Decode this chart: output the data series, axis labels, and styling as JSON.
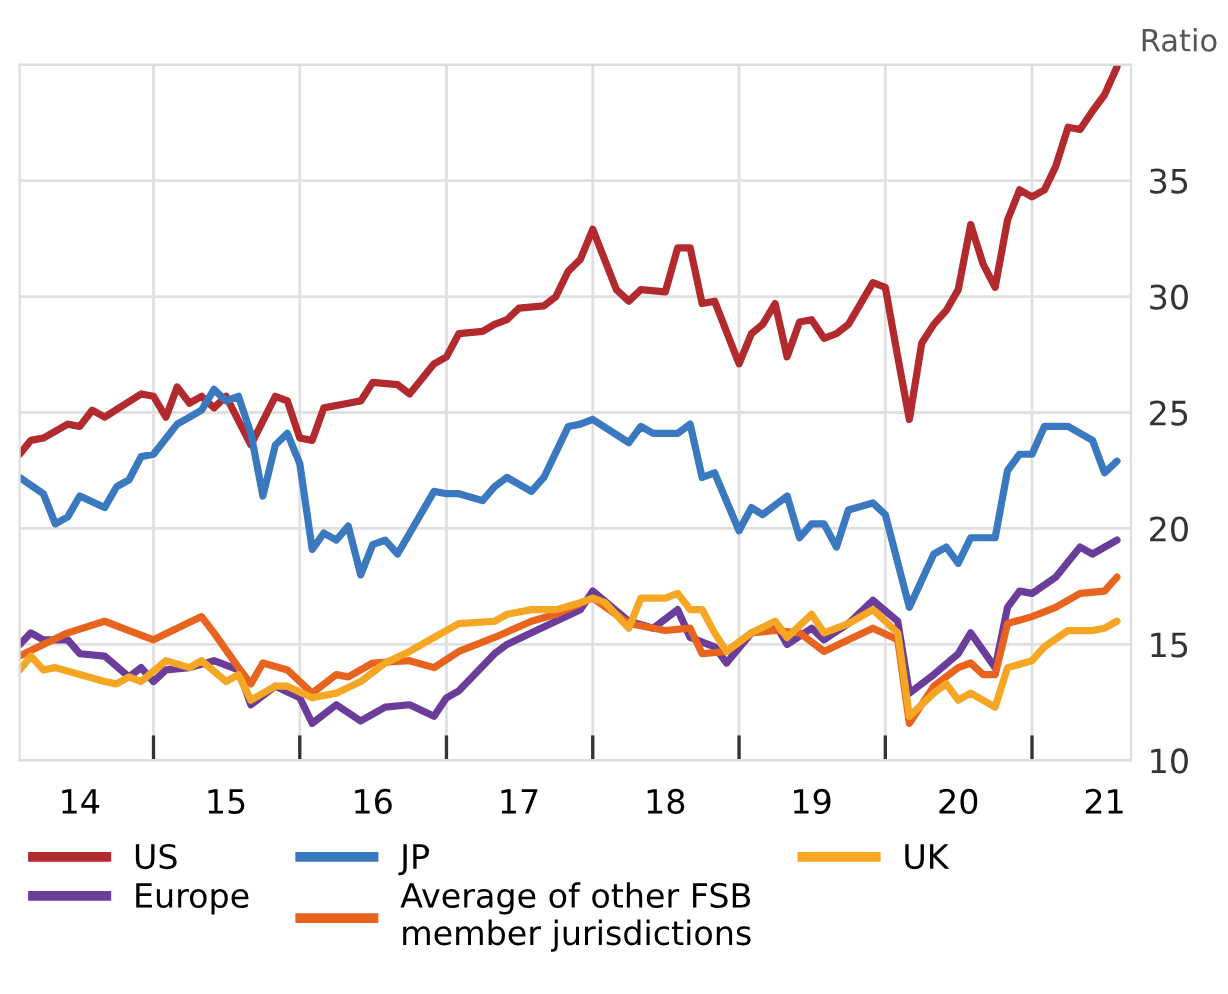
{
  "chart_data": {
    "type": "line",
    "ylabel": "Ratio",
    "xlim": [
      "2014-02-01",
      "2021-09-05"
    ],
    "ylim": [
      10,
      40
    ],
    "xticks": [
      {
        "value": "2014-07-01",
        "label": "14"
      },
      {
        "value": "2015-01-01",
        "label": null
      },
      {
        "value": "2015-07-01",
        "label": "15"
      },
      {
        "value": "2016-01-01",
        "label": null
      },
      {
        "value": "2016-07-01",
        "label": "16"
      },
      {
        "value": "2017-01-01",
        "label": null
      },
      {
        "value": "2017-07-01",
        "label": "17"
      },
      {
        "value": "2018-01-01",
        "label": null
      },
      {
        "value": "2018-07-01",
        "label": "18"
      },
      {
        "value": "2019-01-01",
        "label": null
      },
      {
        "value": "2019-07-01",
        "label": "19"
      },
      {
        "value": "2020-01-01",
        "label": null
      },
      {
        "value": "2020-07-01",
        "label": "20"
      },
      {
        "value": "2021-01-01",
        "label": null
      },
      {
        "value": "2021-07-01",
        "label": "21"
      }
    ],
    "yticks": [
      10,
      15,
      20,
      25,
      30,
      35,
      {
        "value": 40,
        "label": null
      }
    ],
    "grid": true,
    "legend": "bottom",
    "marker": "none",
    "line_style": "solid",
    "series": [
      {
        "name": "US",
        "color": "#b22a2e",
        "x": [
          "2014-02",
          "2014-03",
          "2014-04",
          "2014-06",
          "2014-07",
          "2014-08",
          "2014-09",
          "2014-12",
          "2015-01",
          "2015-02",
          "2015-03",
          "2015-04",
          "2015-05",
          "2015-06",
          "2015-07",
          "2015-09",
          "2015-11",
          "2015-12",
          "2016-01",
          "2016-02",
          "2016-03",
          "2016-05",
          "2016-06",
          "2016-07",
          "2016-09",
          "2016-10",
          "2016-12",
          "2017-01",
          "2017-02",
          "2017-04",
          "2017-05",
          "2017-06",
          "2017-07",
          "2017-09",
          "2017-10",
          "2017-11",
          "2017-12",
          "2018-01",
          "2018-03",
          "2018-04",
          "2018-05",
          "2018-07",
          "2018-08",
          "2018-09",
          "2018-10",
          "2018-11",
          "2019-01",
          "2019-02",
          "2019-03",
          "2019-04",
          "2019-05",
          "2019-06",
          "2019-07",
          "2019-08",
          "2019-09",
          "2019-10",
          "2019-12",
          "2020-01",
          "2020-02",
          "2020-03",
          "2020-04",
          "2020-05",
          "2020-06",
          "2020-07",
          "2020-08",
          "2020-09",
          "2020-10",
          "2020-11",
          "2020-12",
          "2021-01",
          "2021-02",
          "2021-03",
          "2021-04",
          "2021-05",
          "2021-06",
          "2021-07",
          "2021-08"
        ],
        "values": [
          23.2,
          23.8,
          23.9,
          24.5,
          24.4,
          25.1,
          24.8,
          25.8,
          25.7,
          24.8,
          26.1,
          25.4,
          25.7,
          25.2,
          25.7,
          23.6,
          25.7,
          25.5,
          23.9,
          23.8,
          25.2,
          25.4,
          25.5,
          26.3,
          26.2,
          25.8,
          27.1,
          27.4,
          28.4,
          28.5,
          28.8,
          29.0,
          29.5,
          29.6,
          30.0,
          31.1,
          31.6,
          32.9,
          30.3,
          29.8,
          30.3,
          30.2,
          32.1,
          32.1,
          29.7,
          29.8,
          27.1,
          28.4,
          28.8,
          29.7,
          27.4,
          28.9,
          29.0,
          28.2,
          28.4,
          28.8,
          30.6,
          30.4,
          27.4,
          24.7,
          28.0,
          28.8,
          29.4,
          30.3,
          33.1,
          31.4,
          30.4,
          33.3,
          34.6,
          34.3,
          34.6,
          35.6,
          37.3,
          37.2,
          38.0,
          38.7,
          39.9
        ]
      },
      {
        "name": "Europe",
        "color": "#6a3d9a",
        "x": [
          "2014-02",
          "2014-03",
          "2014-04",
          "2014-06",
          "2014-07",
          "2014-09",
          "2014-11",
          "2014-12",
          "2015-01",
          "2015-02",
          "2015-04",
          "2015-06",
          "2015-08",
          "2015-09",
          "2015-11",
          "2016-01",
          "2016-02",
          "2016-04",
          "2016-06",
          "2016-08",
          "2016-10",
          "2016-12",
          "2017-01",
          "2017-02",
          "2017-05",
          "2017-06",
          "2017-08",
          "2017-10",
          "2017-12",
          "2018-01",
          "2018-04",
          "2018-06",
          "2018-08",
          "2018-09",
          "2018-11",
          "2018-12",
          "2019-02",
          "2019-04",
          "2019-05",
          "2019-07",
          "2019-08",
          "2019-10",
          "2019-12",
          "2020-02",
          "2020-03",
          "2020-05",
          "2020-07",
          "2020-08",
          "2020-10",
          "2020-11",
          "2020-12",
          "2021-01",
          "2021-03",
          "2021-05",
          "2021-06",
          "2021-08"
        ],
        "values": [
          15.0,
          15.5,
          15.2,
          15.2,
          14.6,
          14.5,
          13.6,
          14.0,
          13.4,
          13.9,
          14.0,
          14.3,
          13.9,
          12.4,
          13.2,
          12.7,
          11.6,
          12.4,
          11.7,
          12.3,
          12.4,
          11.9,
          12.7,
          13.0,
          14.6,
          15.0,
          15.5,
          16.0,
          16.5,
          17.3,
          16.0,
          15.7,
          16.5,
          15.3,
          14.9,
          14.2,
          15.5,
          15.9,
          15.0,
          15.7,
          15.2,
          15.9,
          16.9,
          16.0,
          12.9,
          13.7,
          14.6,
          15.5,
          14.0,
          16.6,
          17.3,
          17.2,
          17.9,
          19.2,
          18.9,
          19.5
        ]
      },
      {
        "name": "JP",
        "color": "#3a78c0",
        "x": [
          "2014-02",
          "2014-04",
          "2014-05",
          "2014-06",
          "2014-07",
          "2014-09",
          "2014-10",
          "2014-11",
          "2014-12",
          "2015-01",
          "2015-03",
          "2015-04",
          "2015-05",
          "2015-06",
          "2015-07",
          "2015-08",
          "2015-09",
          "2015-10",
          "2015-11",
          "2015-12",
          "2016-01",
          "2016-02",
          "2016-03",
          "2016-04",
          "2016-05",
          "2016-06",
          "2016-07",
          "2016-08",
          "2016-09",
          "2016-12",
          "2017-01",
          "2017-02",
          "2017-04",
          "2017-05",
          "2017-06",
          "2017-08",
          "2017-09",
          "2017-11",
          "2017-12",
          "2018-01",
          "2018-04",
          "2018-05",
          "2018-06",
          "2018-08",
          "2018-09",
          "2018-10",
          "2018-11",
          "2019-01",
          "2019-02",
          "2019-03",
          "2019-05",
          "2019-06",
          "2019-07",
          "2019-08",
          "2019-09",
          "2019-10",
          "2019-12",
          "2020-01",
          "2020-03",
          "2020-05",
          "2020-06",
          "2020-07",
          "2020-08",
          "2020-10",
          "2020-11",
          "2020-12",
          "2021-01",
          "2021-02",
          "2021-04",
          "2021-06",
          "2021-07",
          "2021-08"
        ],
        "values": [
          22.2,
          21.5,
          20.2,
          20.5,
          21.4,
          20.9,
          21.8,
          22.1,
          23.1,
          23.2,
          24.5,
          24.8,
          25.1,
          26.0,
          25.5,
          25.7,
          24.1,
          21.4,
          23.6,
          24.1,
          22.8,
          19.1,
          19.8,
          19.5,
          20.1,
          18.0,
          19.3,
          19.5,
          18.9,
          21.6,
          21.5,
          21.5,
          21.2,
          21.8,
          22.2,
          21.6,
          22.2,
          24.4,
          24.5,
          24.7,
          23.7,
          24.4,
          24.1,
          24.1,
          24.5,
          22.2,
          22.4,
          19.9,
          20.9,
          20.6,
          21.4,
          19.6,
          20.2,
          20.2,
          19.2,
          20.8,
          21.1,
          20.6,
          16.6,
          18.9,
          19.2,
          18.5,
          19.6,
          19.6,
          22.5,
          23.2,
          23.2,
          24.4,
          24.4,
          23.8,
          22.4,
          22.9
        ]
      },
      {
        "name": "Average of other FSB\nmember jurisdictions",
        "color": "#e8641e",
        "x": [
          "2014-02",
          "2014-04",
          "2014-06",
          "2014-09",
          "2014-11",
          "2015-01",
          "2015-03",
          "2015-05",
          "2015-06",
          "2015-08",
          "2015-09",
          "2015-10",
          "2015-12",
          "2016-02",
          "2016-04",
          "2016-05",
          "2016-07",
          "2016-10",
          "2016-12",
          "2017-02",
          "2017-05",
          "2017-08",
          "2017-10",
          "2018-01",
          "2018-04",
          "2018-07",
          "2018-09",
          "2018-10",
          "2018-12",
          "2019-02",
          "2019-04",
          "2019-06",
          "2019-08",
          "2019-10",
          "2019-12",
          "2020-02",
          "2020-03",
          "2020-05",
          "2020-07",
          "2020-08",
          "2020-09",
          "2020-10",
          "2020-11",
          "2021-01",
          "2021-03",
          "2021-05",
          "2021-07",
          "2021-08"
        ],
        "values": [
          14.5,
          15.0,
          15.5,
          16.0,
          15.6,
          15.2,
          15.7,
          16.2,
          15.5,
          14.0,
          13.3,
          14.2,
          13.9,
          12.9,
          13.7,
          13.6,
          14.2,
          14.3,
          14.0,
          14.7,
          15.3,
          16.0,
          16.3,
          17.0,
          15.9,
          15.6,
          15.7,
          14.6,
          14.7,
          15.5,
          15.6,
          15.5,
          14.7,
          15.2,
          15.7,
          15.2,
          11.6,
          13.2,
          14.0,
          14.2,
          13.7,
          13.7,
          15.9,
          16.2,
          16.6,
          17.2,
          17.3,
          17.9
        ]
      },
      {
        "name": "UK",
        "color": "#f5a623",
        "x": [
          "2014-02",
          "2014-03",
          "2014-04",
          "2014-05",
          "2014-07",
          "2014-09",
          "2014-10",
          "2014-11",
          "2014-12",
          "2015-02",
          "2015-04",
          "2015-05",
          "2015-07",
          "2015-08",
          "2015-09",
          "2015-11",
          "2015-12",
          "2016-02",
          "2016-04",
          "2016-06",
          "2016-08",
          "2016-10",
          "2016-12",
          "2017-02",
          "2017-05",
          "2017-06",
          "2017-08",
          "2017-10",
          "2017-12",
          "2018-01",
          "2018-02",
          "2018-04",
          "2018-05",
          "2018-07",
          "2018-08",
          "2018-09",
          "2018-10",
          "2018-11",
          "2018-12",
          "2019-02",
          "2019-04",
          "2019-05",
          "2019-07",
          "2019-08",
          "2019-10",
          "2019-12",
          "2020-02",
          "2020-03",
          "2020-05",
          "2020-06",
          "2020-07",
          "2020-08",
          "2020-10",
          "2020-11",
          "2021-01",
          "2021-02",
          "2021-04",
          "2021-06",
          "2021-07",
          "2021-08"
        ],
        "values": [
          13.9,
          14.5,
          13.9,
          14.0,
          13.7,
          13.4,
          13.3,
          13.6,
          13.4,
          14.3,
          14.0,
          14.3,
          13.4,
          13.7,
          12.6,
          13.2,
          13.2,
          12.7,
          12.9,
          13.4,
          14.2,
          14.7,
          15.3,
          15.9,
          16.0,
          16.3,
          16.5,
          16.5,
          16.8,
          17.0,
          16.8,
          15.7,
          17.0,
          17.0,
          17.2,
          16.5,
          16.5,
          15.5,
          14.7,
          15.5,
          16.0,
          15.3,
          16.3,
          15.5,
          15.9,
          16.5,
          15.5,
          11.9,
          12.9,
          13.3,
          12.6,
          12.9,
          12.3,
          14.0,
          14.3,
          14.9,
          15.6,
          15.6,
          15.7,
          16.0
        ]
      }
    ]
  }
}
